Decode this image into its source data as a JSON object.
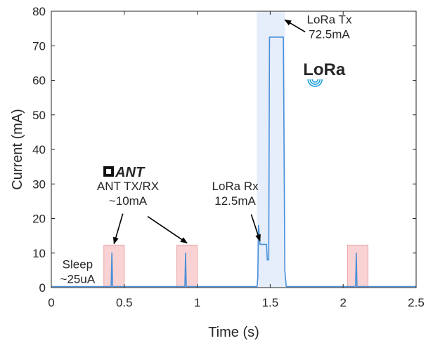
{
  "chart_data": {
    "type": "line",
    "xlabel": "Time (s)",
    "ylabel": "Current (mA)",
    "xlim": [
      0,
      2.5
    ],
    "ylim": [
      0,
      80
    ],
    "xticks": [
      0,
      0.5,
      1,
      1.5,
      2,
      2.5
    ],
    "xtick_labels": [
      "0",
      "0.5",
      "1",
      "1.5",
      "2",
      "2.5"
    ],
    "yticks": [
      0,
      10,
      20,
      30,
      40,
      50,
      60,
      70,
      80
    ],
    "ytick_labels": [
      "0",
      "10",
      "20",
      "30",
      "40",
      "50",
      "60",
      "70",
      "80"
    ],
    "grid": false,
    "series": [
      {
        "color": "#4a90d9",
        "x": [
          0,
          0.1,
          0.2,
          0.3,
          0.4,
          0.41,
          0.415,
          0.42,
          0.425,
          0.43,
          0.5,
          0.6,
          0.7,
          0.8,
          0.9,
          0.915,
          0.92,
          0.925,
          0.93,
          1.0,
          1.1,
          1.2,
          1.3,
          1.41,
          1.415,
          1.42,
          1.43,
          1.44,
          1.46,
          1.475,
          1.48,
          1.49,
          1.495,
          1.5,
          1.52,
          1.55,
          1.58,
          1.59,
          1.6,
          1.61,
          1.7,
          1.8,
          1.9,
          2.0,
          2.08,
          2.085,
          2.09,
          2.095,
          2.1,
          2.2,
          2.3,
          2.4,
          2.5
        ],
        "y": [
          0.3,
          0.3,
          0.3,
          0.3,
          0.3,
          0.3,
          10,
          0.3,
          0.3,
          0.3,
          0.3,
          0.3,
          0.3,
          0.3,
          0.3,
          0.3,
          10,
          0.3,
          0.3,
          0.3,
          0.3,
          0.3,
          0.3,
          0.3,
          3,
          18,
          12.5,
          12.5,
          12.5,
          12.5,
          8,
          8,
          72.5,
          72.5,
          72.5,
          72.5,
          72.5,
          72.5,
          5,
          0.3,
          0.3,
          0.3,
          0.3,
          0.3,
          0.3,
          0.3,
          10,
          0.3,
          0.3,
          0.3,
          0.3,
          0.3,
          0.3
        ]
      }
    ],
    "highlight_regions": [
      {
        "x": [
          0.36,
          0.5
        ],
        "y": [
          0,
          12.3
        ],
        "color": "#f9d3d3",
        "edge": "#e8a6a6"
      },
      {
        "x": [
          0.86,
          1.0
        ],
        "y": [
          0,
          12.3
        ],
        "color": "#f9d3d3",
        "edge": "#e8a6a6"
      },
      {
        "x": [
          2.03,
          2.17
        ],
        "y": [
          0,
          12.3
        ],
        "color": "#f9d3d3",
        "edge": "#e8a6a6"
      },
      {
        "x": [
          1.41,
          1.6
        ],
        "y": [
          0,
          80
        ],
        "color": "#e6eefb",
        "edge": "#e6eefb"
      }
    ],
    "annotations": [
      {
        "lines": [
          "LoRa Tx",
          "72.5mA"
        ],
        "x": 1.905,
        "y": 76.4
      },
      {
        "lines": [
          "LoRa Rx",
          "12.5mA"
        ],
        "x": 1.26,
        "y": 28.2
      },
      {
        "lines": [
          "ANT TX/RX",
          "~10mA"
        ],
        "x": 0.525,
        "y": 28.2
      },
      {
        "lines": [
          "Sleep",
          "~25uA"
        ],
        "x": 0.18,
        "y": 5.6
      }
    ],
    "arrows": [
      {
        "from": [
          0.49,
          21.4
        ],
        "to": [
          0.43,
          12.7
        ]
      },
      {
        "from": [
          0.66,
          20.6
        ],
        "to": [
          0.93,
          12.9
        ]
      },
      {
        "from": [
          1.37,
          21.2
        ],
        "to": [
          1.43,
          13.5
        ]
      },
      {
        "from": [
          1.74,
          74.0
        ],
        "to": [
          1.6,
          77.5
        ]
      }
    ],
    "logos": [
      {
        "text": "ANT",
        "name": "ant-logo",
        "x": 0.535,
        "y": 32.1
      },
      {
        "text": "LoRa",
        "name": "lora-logo",
        "x": 1.87,
        "y": 61.5
      }
    ]
  }
}
